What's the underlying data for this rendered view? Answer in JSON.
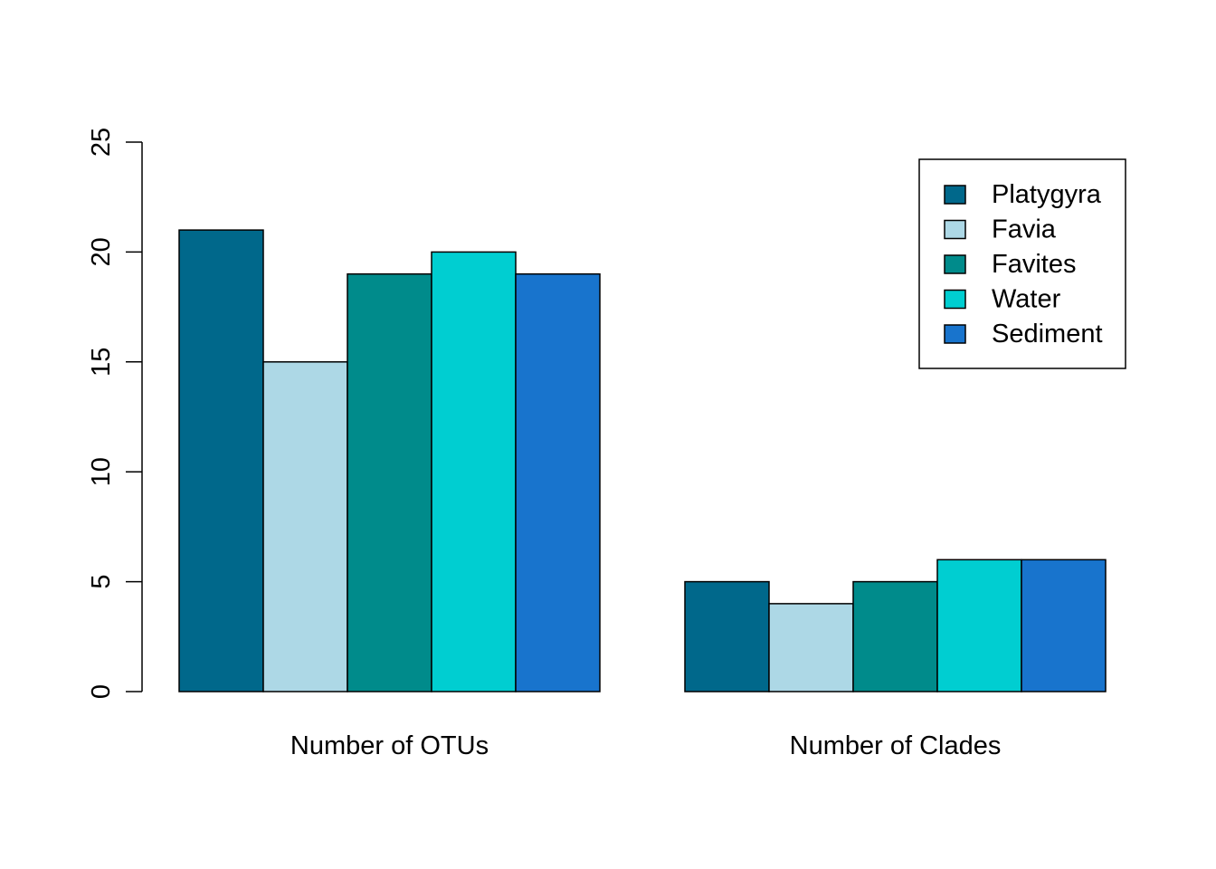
{
  "chart_data": {
    "type": "bar",
    "layout": "grouped",
    "categories": [
      "Number of OTUs",
      "Number of Clades"
    ],
    "series": [
      {
        "name": "Platygyra",
        "color": "#00688b",
        "values": [
          21,
          5
        ]
      },
      {
        "name": "Favia",
        "color": "#add8e6",
        "values": [
          15,
          4
        ]
      },
      {
        "name": "Favites",
        "color": "#008b8b",
        "values": [
          19,
          5
        ]
      },
      {
        "name": "Water",
        "color": "#00ced1",
        "values": [
          20,
          6
        ]
      },
      {
        "name": "Sediment",
        "color": "#1874cd",
        "values": [
          19,
          6
        ]
      }
    ],
    "title": "",
    "xlabel": "",
    "ylabel": "",
    "ylim": [
      0,
      25
    ],
    "yticks": [
      0,
      5,
      10,
      15,
      20,
      25
    ],
    "ytick_labels": [
      "0",
      "5",
      "10",
      "15",
      "20",
      "25"
    ],
    "grid": false,
    "legend_position": "top-right"
  }
}
